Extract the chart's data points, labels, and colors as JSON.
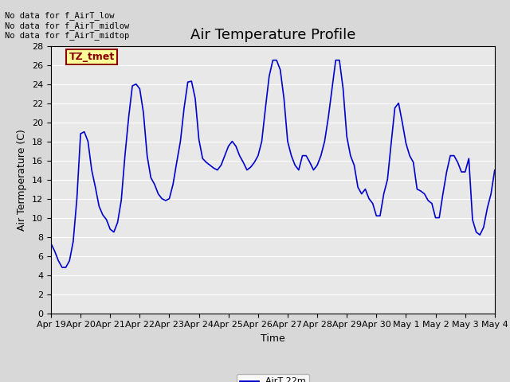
{
  "title": "Air Temperature Profile",
  "xlabel": "Time",
  "ylabel": "Air Termperature (C)",
  "legend_label": "AirT 22m",
  "annotation_lines": [
    "No data for f_AirT_low",
    "No data for f_AirT_midlow",
    "No data for f_AirT_midtop"
  ],
  "legend_box_label": "TZ_tmet",
  "ylim": [
    0,
    28
  ],
  "yticks": [
    0,
    2,
    4,
    6,
    8,
    10,
    12,
    14,
    16,
    18,
    20,
    22,
    24,
    26,
    28
  ],
  "background_color": "#d8d8d8",
  "plot_bg_color": "#e8e8e8",
  "line_color": "#0000cc",
  "title_fontsize": 13,
  "axis_fontsize": 9,
  "tick_fontsize": 8,
  "x_tick_labels": [
    "Apr 19",
    "Apr 20",
    "Apr 21",
    "Apr 22",
    "Apr 23",
    "Apr 24",
    "Apr 25",
    "Apr 26",
    "Apr 27",
    "Apr 28",
    "Apr 29",
    "Apr 30",
    "May 1",
    "May 2",
    "May 3",
    "May 4"
  ],
  "time_days": [
    0.0,
    0.125,
    0.25,
    0.375,
    0.5,
    0.625,
    0.75,
    0.875,
    1.0,
    1.125,
    1.25,
    1.375,
    1.5,
    1.625,
    1.75,
    1.875,
    2.0,
    2.125,
    2.25,
    2.375,
    2.5,
    2.625,
    2.75,
    2.875,
    3.0,
    3.125,
    3.25,
    3.375,
    3.5,
    3.625,
    3.75,
    3.875,
    4.0,
    4.125,
    4.25,
    4.375,
    4.5,
    4.625,
    4.75,
    4.875,
    5.0,
    5.125,
    5.25,
    5.375,
    5.5,
    5.625,
    5.75,
    5.875,
    6.0,
    6.125,
    6.25,
    6.375,
    6.5,
    6.625,
    6.75,
    6.875,
    7.0,
    7.125,
    7.25,
    7.375,
    7.5,
    7.625,
    7.75,
    7.875,
    8.0,
    8.125,
    8.25,
    8.375,
    8.5,
    8.625,
    8.75,
    8.875,
    9.0,
    9.125,
    9.25,
    9.375,
    9.5,
    9.625,
    9.75,
    9.875,
    10.0,
    10.125,
    10.25,
    10.375,
    10.5,
    10.625,
    10.75,
    10.875,
    11.0,
    11.125,
    11.25,
    11.375,
    11.5,
    11.625,
    11.75,
    11.875,
    12.0,
    12.125,
    12.25,
    12.375,
    12.5,
    12.625,
    12.75,
    12.875,
    13.0,
    13.125,
    13.25,
    13.375,
    13.5,
    13.625,
    13.75,
    13.875,
    14.0,
    14.125,
    14.25,
    14.375,
    14.5,
    14.625,
    14.75,
    14.875,
    15.0
  ],
  "temp_values": [
    7.3,
    6.5,
    5.5,
    4.8,
    4.8,
    5.5,
    7.5,
    12.0,
    18.8,
    19.0,
    18.0,
    15.0,
    13.2,
    11.2,
    10.3,
    9.8,
    8.8,
    8.5,
    9.5,
    11.8,
    16.5,
    20.5,
    23.8,
    24.0,
    23.5,
    21.0,
    16.5,
    14.2,
    13.5,
    12.5,
    12.0,
    11.8,
    12.0,
    13.5,
    15.8,
    18.0,
    21.5,
    24.2,
    24.3,
    22.5,
    18.2,
    16.2,
    15.8,
    15.5,
    15.2,
    15.0,
    15.5,
    16.5,
    17.5,
    18.0,
    17.5,
    16.5,
    15.8,
    15.0,
    15.3,
    15.8,
    16.5,
    18.0,
    21.5,
    24.8,
    26.5,
    26.5,
    25.5,
    22.5,
    18.0,
    16.5,
    15.5,
    15.0,
    16.5,
    16.5,
    15.8,
    15.0,
    15.5,
    16.5,
    18.0,
    20.5,
    23.5,
    26.5,
    26.5,
    23.5,
    18.5,
    16.5,
    15.5,
    13.2,
    12.5,
    13.0,
    12.0,
    11.5,
    10.2,
    10.2,
    12.5,
    14.0,
    17.8,
    21.5,
    22.0,
    20.0,
    17.8,
    16.5,
    15.8,
    13.0,
    12.8,
    12.5,
    11.8,
    11.5,
    10.0,
    10.0,
    12.5,
    14.8,
    16.5,
    16.5,
    15.8,
    14.8,
    14.8,
    16.2,
    9.8,
    8.5,
    8.2,
    9.0,
    11.0,
    12.5,
    15.0
  ]
}
